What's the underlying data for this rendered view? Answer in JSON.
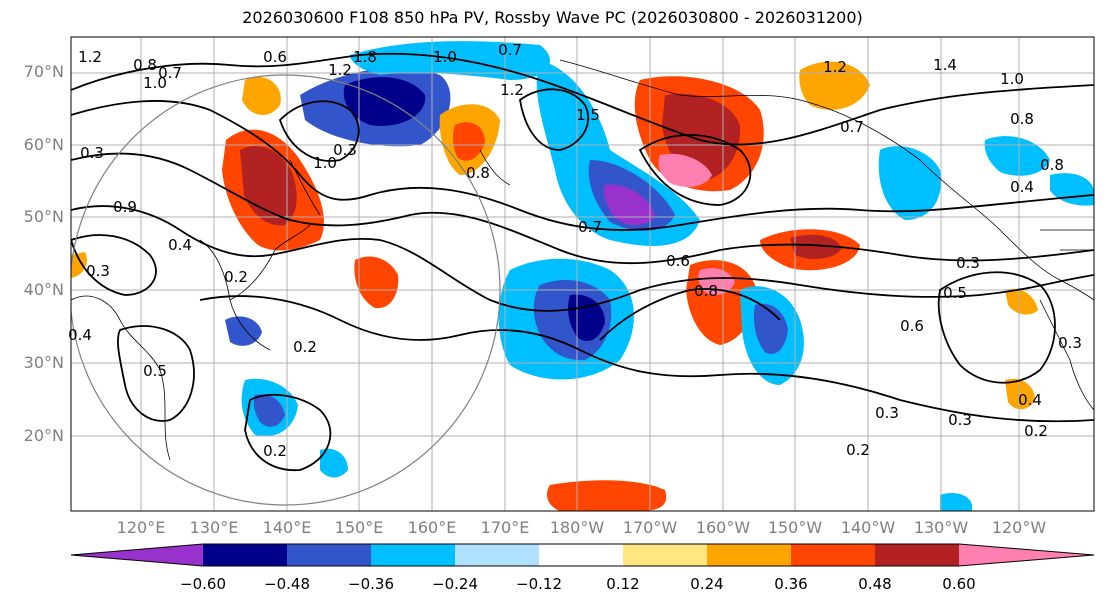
{
  "title": "2026030600 F108 850 hPa PV, Rossby Wave PC (2026030800 - 2026031200)",
  "latitude_labels": [
    "70°N",
    "60°N",
    "50°N",
    "40°N",
    "30°N",
    "20°N"
  ],
  "longitude_labels": [
    "120°E",
    "130°E",
    "140°E",
    "150°E",
    "160°E",
    "170°E",
    "180°W",
    "170°W",
    "160°W",
    "150°W",
    "140°W",
    "130°W",
    "120°W"
  ],
  "contour_labels": [
    {
      "text": "1.2"
    },
    {
      "text": "0.8"
    },
    {
      "text": "0.7"
    },
    {
      "text": "1.0"
    },
    {
      "text": "0.6"
    },
    {
      "text": "1.2"
    },
    {
      "text": "1.8"
    },
    {
      "text": "1.0"
    },
    {
      "text": "0.7"
    },
    {
      "text": "1.2"
    },
    {
      "text": "1.5"
    },
    {
      "text": "1.2"
    },
    {
      "text": "1.4"
    },
    {
      "text": "1.0"
    },
    {
      "text": "0.8"
    },
    {
      "text": "0.7"
    },
    {
      "text": "0.8"
    },
    {
      "text": "0.4"
    },
    {
      "text": "0.3"
    },
    {
      "text": "1.0"
    },
    {
      "text": "0.3"
    },
    {
      "text": "0.8"
    },
    {
      "text": "0.9"
    },
    {
      "text": "0.4"
    },
    {
      "text": "0.3"
    },
    {
      "text": "0.2"
    },
    {
      "text": "0.7"
    },
    {
      "text": "0.6"
    },
    {
      "text": "0.8"
    },
    {
      "text": "0.3"
    },
    {
      "text": "0.5"
    },
    {
      "text": "0.6"
    },
    {
      "text": "0.4"
    },
    {
      "text": "0.2"
    },
    {
      "text": "0.3"
    },
    {
      "text": "0.3"
    },
    {
      "text": "0.2"
    },
    {
      "text": "0.2"
    },
    {
      "text": "0.3"
    },
    {
      "text": "0.4"
    },
    {
      "text": "0.5"
    },
    {
      "text": "0.2"
    }
  ],
  "colorbar": {
    "colors": [
      "#9932cc",
      "#00008b",
      "#3355cc",
      "#00bfff",
      "#b0e0ff",
      "#ffffff",
      "#ffe680",
      "#ffa500",
      "#ff4500",
      "#b22222",
      "#ff80b0"
    ],
    "ticks": [
      "−0.60",
      "−0.48",
      "−0.36",
      "−0.24",
      "−0.12",
      "0.12",
      "0.24",
      "0.36",
      "0.48",
      "0.60"
    ]
  }
}
